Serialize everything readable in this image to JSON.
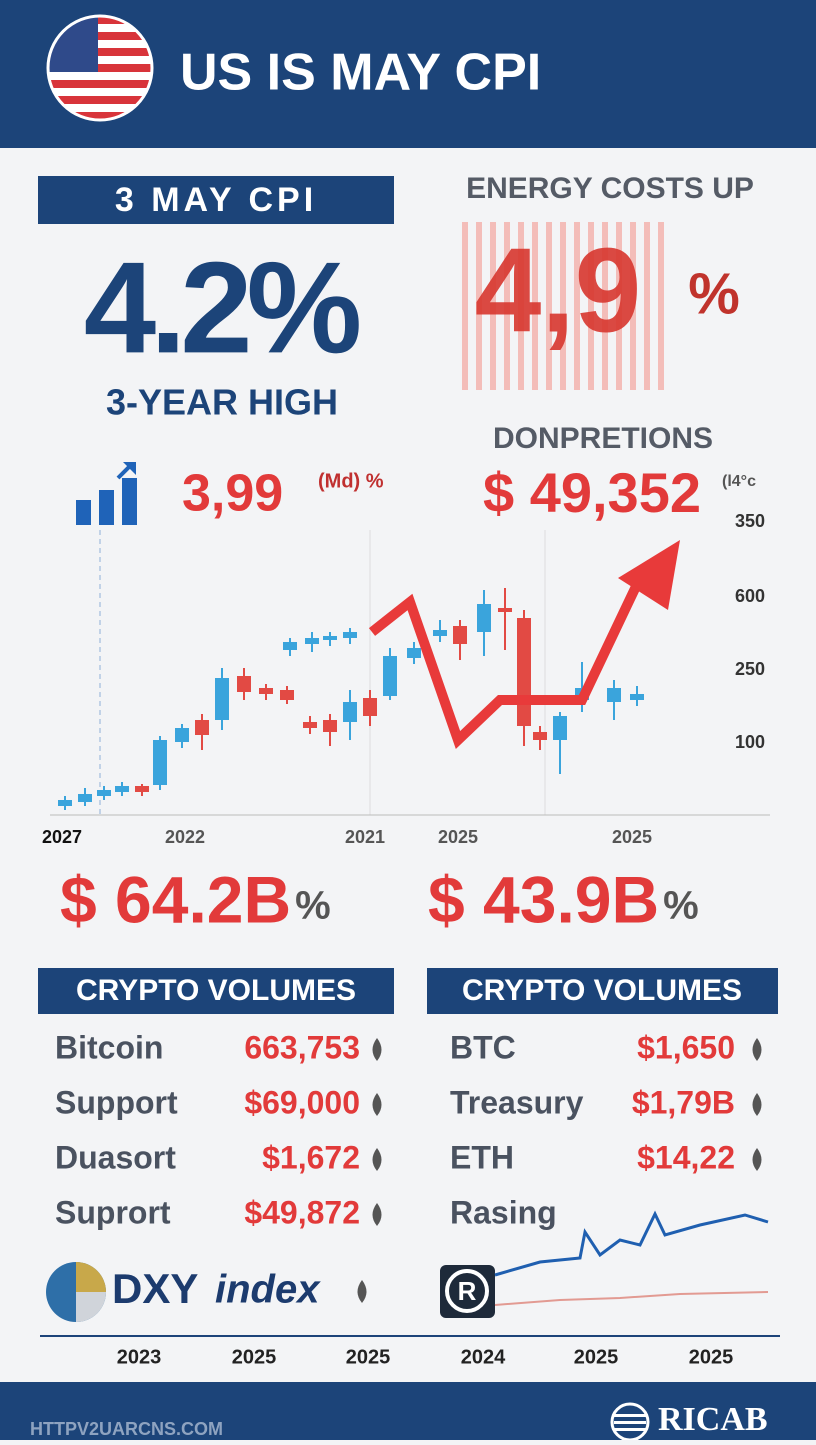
{
  "header": {
    "title": "US IS MAY CPI"
  },
  "left_card": {
    "badge": "3 MAY CPI",
    "value": "4.2%",
    "subtitle": "3-YEAR HIGH",
    "metric_value": "3,99",
    "metric_unit": "(Md) %"
  },
  "right_card": {
    "heading": "ENERGY COSTS UP",
    "value": "4,9",
    "percent": "%",
    "subheading": "DONPRETIONS",
    "metric_value": "$ 49,352",
    "metric_note": "(l4°c"
  },
  "chart": {
    "y_labels": [
      "350",
      "600",
      "250",
      "100"
    ],
    "x_labels": [
      "2027",
      "2022",
      "2021",
      "2025",
      "2025"
    ]
  },
  "totals": [
    {
      "value": "$ 64.2B",
      "unit": "%"
    },
    {
      "value": "$ 43.9B",
      "unit": "%"
    }
  ],
  "tables": [
    {
      "title": "CRYPTO VOLUMES",
      "rows": [
        {
          "name": "Bitcoin",
          "value": "663,753"
        },
        {
          "name": "Support",
          "value": "$69,000"
        },
        {
          "name": "Duasort",
          "value": "$1,672"
        },
        {
          "name": "Suprort",
          "value": "$49,872"
        }
      ]
    },
    {
      "title": "CRYPTO VOLUMES",
      "rows": [
        {
          "name": "BTC",
          "value": "$1,650"
        },
        {
          "name": "Treasury",
          "value": "$1,79B"
        },
        {
          "name": "ETH",
          "value": "$14,22"
        },
        {
          "name": "Rasing"
        }
      ]
    }
  ],
  "logo": {
    "text": "DXY",
    "suffix": "index"
  },
  "bottom_axis": [
    "2023",
    "2025",
    "2025",
    "2024",
    "2025",
    "2025"
  ],
  "footer": {
    "url": "HTTPV2UARCNS.COM",
    "brand": "RICAB"
  }
}
